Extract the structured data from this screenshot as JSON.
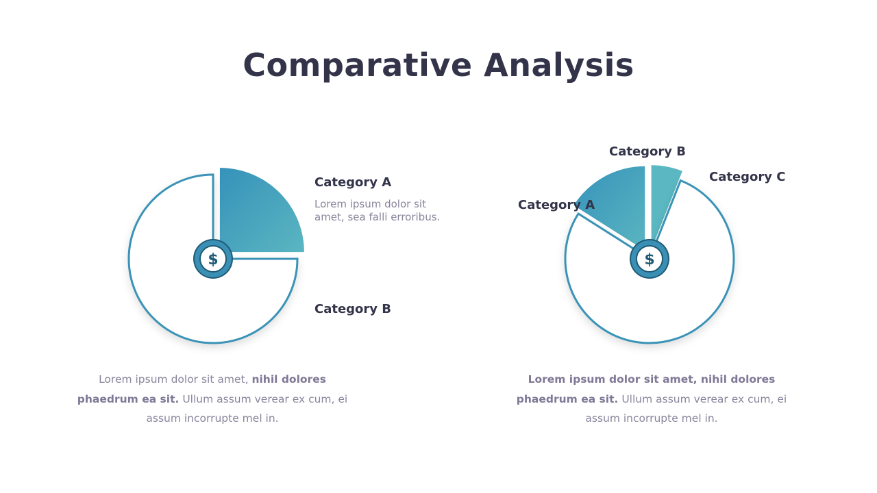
{
  "title": "Comparative Analysis",
  "colors": {
    "outline": "#3a93b6",
    "fill_start": "#3692ba",
    "fill_end": "#5ab6c0",
    "fill_light": "#5bb8c2",
    "coin_ring": "#3a8fb4",
    "coin_dark": "#1f5a76",
    "heading": "#33334a",
    "body_text": "#8a849c"
  },
  "icon": {
    "name": "dollar-coin-icon",
    "glyph": "$"
  },
  "left_chart": {
    "desc_a": "Lorem ipsum dolor sit amet, sea falli erroribus.",
    "caption": {
      "part1": "Lorem ipsum dolor sit amet, ",
      "bold1": "nihil dolores phaedrum ea sit.",
      "part2": " Ullum assum verear ex cum, ei assum incorrupte mel in."
    }
  },
  "right_chart": {
    "caption": {
      "bold1": "Lorem ipsum dolor sit amet, nihil dolores phaedrum ea sit.",
      "part2": " Ullum assum verear ex cum, ei assum incorrupte mel in."
    }
  },
  "chart_data": [
    {
      "type": "pie",
      "categories": [
        "Category A",
        "Category B"
      ],
      "values": [
        25,
        75
      ],
      "exploded": [
        "Category A"
      ]
    },
    {
      "type": "pie",
      "categories": [
        "Category A",
        "Category B",
        "Category C"
      ],
      "values": [
        16,
        6,
        78
      ],
      "exploded": [
        "Category A",
        "Category B"
      ]
    }
  ]
}
